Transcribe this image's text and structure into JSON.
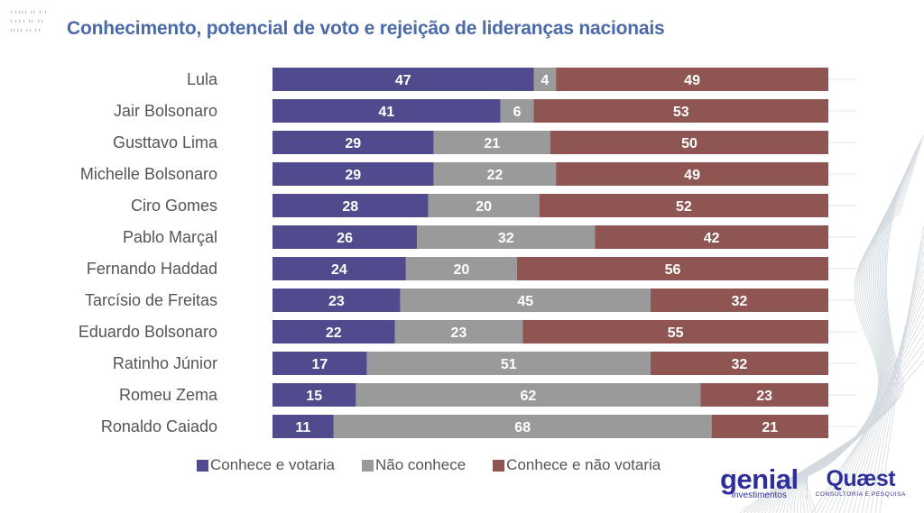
{
  "header": {
    "title": "Conhecimento, potencial de voto e rejeição de lideranças nacionais"
  },
  "colors": {
    "title": "#4a6aa8",
    "conhece_votaria": "#4f4b8c",
    "nao_conhece": "#9a9a9a",
    "conhece_nao_votaria": "#8f5552"
  },
  "chart_data": {
    "type": "bar",
    "orientation": "horizontal",
    "stacked": true,
    "title": "Conhecimento, potencial de voto e rejeição de lideranças nacionais",
    "xlabel": "",
    "ylabel": "",
    "xlim": [
      0,
      100
    ],
    "grid": true,
    "legend_position": "bottom",
    "categories": [
      "Lula",
      "Jair Bolsonaro",
      "Gusttavo Lima",
      "Michelle Bolsonaro",
      "Ciro Gomes",
      "Pablo Marçal",
      "Fernando Haddad",
      "Tarcísio de Freitas",
      "Eduardo Bolsonaro",
      "Ratinho Júnior",
      "Romeu Zema",
      "Ronaldo Caiado"
    ],
    "series": [
      {
        "name": "Conhece e votaria",
        "color": "#4f4b8c",
        "values": [
          47,
          41,
          29,
          29,
          28,
          26,
          24,
          23,
          22,
          17,
          15,
          11
        ]
      },
      {
        "name": "Não conhece",
        "color": "#9a9a9a",
        "values": [
          4,
          6,
          21,
          22,
          20,
          32,
          20,
          45,
          23,
          51,
          62,
          68
        ]
      },
      {
        "name": "Conhece e não votaria",
        "color": "#8f5552",
        "values": [
          49,
          53,
          50,
          49,
          52,
          42,
          56,
          32,
          55,
          32,
          23,
          21
        ]
      }
    ]
  },
  "logos": {
    "genial_name": "genial",
    "genial_sub": "investimentos",
    "quaest_name": "Quæst",
    "quaest_sub": "CONSULTORIA E PESQUISA"
  }
}
